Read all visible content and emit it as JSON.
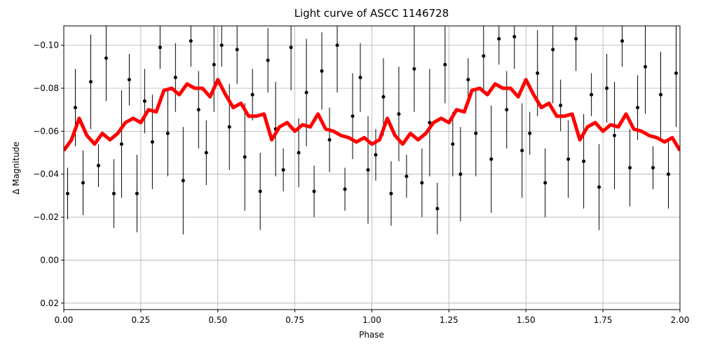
{
  "chart_data": {
    "type": "scatter",
    "title": "Light curve of ASCC 1146728",
    "xlabel": "Phase",
    "ylabel": "Δ Magnitude",
    "xlim": [
      0,
      2
    ],
    "ylim": [
      0.023,
      -0.109
    ],
    "grid": true,
    "xticks": [
      {
        "value": 0,
        "label": "0.00"
      },
      {
        "value": 0.25,
        "label": "0.25"
      },
      {
        "value": 0.5,
        "label": "0.50"
      },
      {
        "value": 0.75,
        "label": "0.75"
      },
      {
        "value": 1,
        "label": "1.00"
      },
      {
        "value": 1.25,
        "label": "1.25"
      },
      {
        "value": 1.5,
        "label": "1.50"
      },
      {
        "value": 1.75,
        "label": "1.75"
      },
      {
        "value": 2,
        "label": "2.00"
      }
    ],
    "yticks": [
      {
        "value": -0.1,
        "label": "−0.10"
      },
      {
        "value": -0.08,
        "label": "−0.08"
      },
      {
        "value": -0.06,
        "label": "−0.06"
      },
      {
        "value": -0.04,
        "label": "−0.04"
      },
      {
        "value": -0.02,
        "label": "−0.02"
      },
      {
        "value": 0,
        "label": "0.00"
      },
      {
        "value": 0.02,
        "label": "0.02"
      }
    ],
    "series": [
      {
        "type": "scatter",
        "color": "#000000",
        "x": [
          0.0125,
          0.0375,
          0.0625,
          0.0875,
          0.1125,
          0.1375,
          0.1625,
          0.1875,
          0.2125,
          0.2375,
          0.2625,
          0.2875,
          0.3125,
          0.3375,
          0.3625,
          0.3875,
          0.4125,
          0.4375,
          0.4625,
          0.4875,
          0.5125,
          0.5375,
          0.5625,
          0.5875,
          0.6125,
          0.6375,
          0.6625,
          0.6875,
          0.7125,
          0.7375,
          0.7625,
          0.7875,
          0.8125,
          0.8375,
          0.8625,
          0.8875,
          0.9125,
          0.9375,
          0.9625,
          0.9875,
          1.0125,
          1.0375,
          1.0625,
          1.0875,
          1.1125,
          1.1375,
          1.1625,
          1.1875,
          1.2125,
          1.2375,
          1.2625,
          1.2875,
          1.3125,
          1.3375,
          1.3625,
          1.3875,
          1.4125,
          1.4375,
          1.4625,
          1.4875,
          1.5125,
          1.5375,
          1.5625,
          1.5875,
          1.6125,
          1.6375,
          1.6625,
          1.6875,
          1.7125,
          1.7375,
          1.7625,
          1.7875,
          1.8125,
          1.8375,
          1.8625,
          1.8875,
          1.9125,
          1.9375,
          1.9625,
          1.9875
        ],
        "values": [
          -0.031,
          -0.071,
          -0.036,
          -0.083,
          -0.044,
          -0.094,
          -0.031,
          -0.054,
          -0.084,
          -0.031,
          -0.074,
          -0.055,
          -0.099,
          -0.059,
          -0.085,
          -0.037,
          -0.102,
          -0.07,
          -0.05,
          -0.091,
          -0.1,
          -0.062,
          -0.098,
          -0.048,
          -0.077,
          -0.032,
          -0.093,
          -0.061,
          -0.042,
          -0.099,
          -0.05,
          -0.078,
          -0.032,
          -0.088,
          -0.056,
          -0.1,
          -0.033,
          -0.067,
          -0.085,
          -0.042,
          -0.049,
          -0.076,
          -0.031,
          -0.068,
          -0.039,
          -0.089,
          -0.036,
          -0.064,
          -0.024,
          -0.091,
          -0.054,
          -0.04,
          -0.084,
          -0.059,
          -0.095,
          -0.047,
          -0.103,
          -0.07,
          -0.104,
          -0.051,
          -0.059,
          -0.087,
          -0.036,
          -0.098,
          -0.072,
          -0.047,
          -0.103,
          -0.046,
          -0.077,
          -0.034,
          -0.08,
          -0.058,
          -0.102,
          -0.043,
          -0.071,
          -0.09,
          -0.043,
          -0.077,
          -0.04,
          -0.087
        ],
        "errors": [
          0.012,
          0.018,
          0.015,
          0.022,
          0.01,
          0.02,
          0.016,
          0.025,
          0.012,
          0.018,
          0.015,
          0.022,
          0.01,
          0.02,
          0.016,
          0.025,
          0.012,
          0.018,
          0.015,
          0.022,
          0.01,
          0.02,
          0.016,
          0.025,
          0.012,
          0.018,
          0.015,
          0.022,
          0.01,
          0.02,
          0.016,
          0.025,
          0.012,
          0.018,
          0.015,
          0.022,
          0.01,
          0.02,
          0.016,
          0.025,
          0.012,
          0.018,
          0.015,
          0.022,
          0.01,
          0.02,
          0.016,
          0.025,
          0.012,
          0.018,
          0.015,
          0.022,
          0.01,
          0.02,
          0.016,
          0.025,
          0.012,
          0.018,
          0.015,
          0.022,
          0.01,
          0.02,
          0.016,
          0.025,
          0.012,
          0.018,
          0.015,
          0.022,
          0.01,
          0.02,
          0.016,
          0.025,
          0.012,
          0.018,
          0.015,
          0.022,
          0.01,
          0.02,
          0.016,
          0.025
        ]
      },
      {
        "type": "line",
        "color": "#ff0000",
        "x": [
          0,
          0.025,
          0.05,
          0.075,
          0.1,
          0.125,
          0.15,
          0.175,
          0.2,
          0.225,
          0.25,
          0.275,
          0.3,
          0.325,
          0.35,
          0.375,
          0.4,
          0.425,
          0.45,
          0.475,
          0.5,
          0.525,
          0.55,
          0.575,
          0.6,
          0.625,
          0.65,
          0.675,
          0.7,
          0.725,
          0.75,
          0.775,
          0.8,
          0.825,
          0.85,
          0.875,
          0.9,
          0.925,
          0.95,
          0.975,
          1,
          1.025,
          1.05,
          1.075,
          1.1,
          1.125,
          1.15,
          1.175,
          1.2,
          1.225,
          1.25,
          1.275,
          1.3,
          1.325,
          1.35,
          1.375,
          1.4,
          1.425,
          1.45,
          1.475,
          1.5,
          1.525,
          1.55,
          1.575,
          1.6,
          1.625,
          1.65,
          1.675,
          1.7,
          1.725,
          1.75,
          1.775,
          1.8,
          1.825,
          1.85,
          1.875,
          1.9,
          1.925,
          1.95,
          1.975,
          2
        ],
        "values": [
          -0.051,
          -0.056,
          -0.066,
          -0.058,
          -0.054,
          -0.059,
          -0.056,
          -0.059,
          -0.064,
          -0.066,
          -0.064,
          -0.07,
          -0.069,
          -0.079,
          -0.08,
          -0.077,
          -0.082,
          -0.08,
          -0.08,
          -0.076,
          -0.084,
          -0.077,
          -0.071,
          -0.073,
          -0.067,
          -0.067,
          -0.068,
          -0.056,
          -0.062,
          -0.064,
          -0.06,
          -0.063,
          -0.062,
          -0.068,
          -0.061,
          -0.06,
          -0.058,
          -0.057,
          -0.055,
          -0.057,
          -0.054,
          -0.056,
          -0.066,
          -0.058,
          -0.054,
          -0.059,
          -0.056,
          -0.059,
          -0.064,
          -0.066,
          -0.064,
          -0.07,
          -0.069,
          -0.079,
          -0.08,
          -0.077,
          -0.082,
          -0.08,
          -0.08,
          -0.076,
          -0.084,
          -0.077,
          -0.071,
          -0.073,
          -0.067,
          -0.067,
          -0.068,
          -0.056,
          -0.062,
          -0.064,
          -0.06,
          -0.063,
          -0.062,
          -0.068,
          -0.061,
          -0.06,
          -0.058,
          -0.057,
          -0.055,
          -0.057,
          -0.051
        ]
      }
    ]
  }
}
